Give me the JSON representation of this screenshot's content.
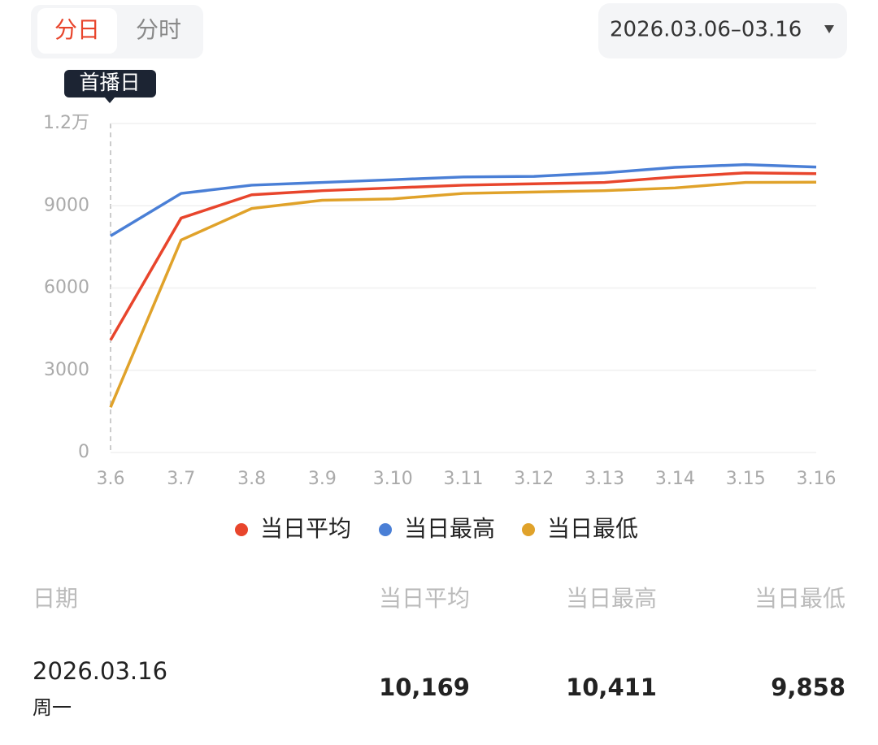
{
  "tabs": [
    "分日",
    "分时"
  ],
  "date_range": "2026.03.06–03.16",
  "chart_data": {
    "type": "line",
    "annotation": "首播日",
    "categories": [
      "3.6",
      "3.7",
      "3.8",
      "3.9",
      "3.10",
      "3.11",
      "3.12",
      "3.13",
      "3.14",
      "3.15",
      "3.16"
    ],
    "series": [
      {
        "name": "当日平均",
        "color": "#e8452c",
        "values": [
          4100,
          8550,
          9400,
          9550,
          9650,
          9750,
          9800,
          9850,
          10050,
          10200,
          10169
        ]
      },
      {
        "name": "当日最高",
        "color": "#4a7fd6",
        "values": [
          7900,
          9450,
          9750,
          9850,
          9950,
          10050,
          10070,
          10200,
          10400,
          10500,
          10411
        ]
      },
      {
        "name": "当日最低",
        "color": "#e0a22a",
        "values": [
          1650,
          7750,
          8900,
          9200,
          9250,
          9450,
          9500,
          9550,
          9650,
          9850,
          9858
        ]
      }
    ],
    "ylim": [
      0,
      12000
    ],
    "yticks": [
      0,
      3000,
      6000,
      9000,
      {
        "value": 12000,
        "label": "1.2万"
      }
    ],
    "grid": true
  },
  "table": {
    "headers": [
      "日期",
      "当日平均",
      "当日最高",
      "当日最低"
    ],
    "rows": [
      [
        "2026.03.16",
        "10,169",
        "10,411",
        "9,858"
      ]
    ],
    "weekdays": [
      "周一"
    ]
  }
}
